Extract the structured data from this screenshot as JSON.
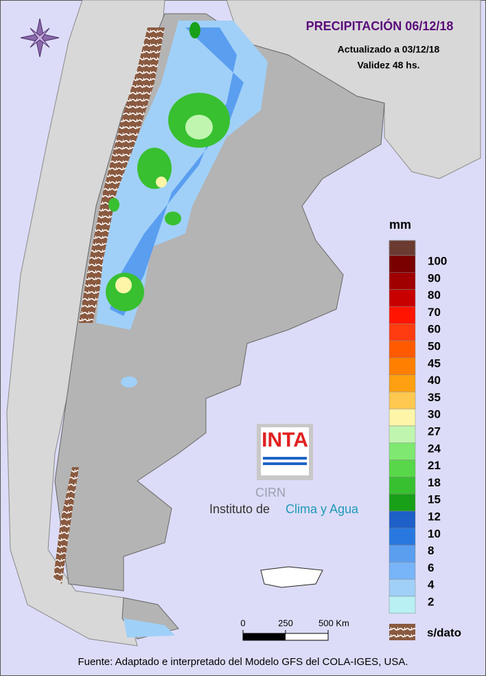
{
  "title": "PRECIPITACIÓN 06/12/18",
  "updated": "Actualizado a 03/12/18",
  "validity": "Validez 48 hs.",
  "legend": {
    "unit": "mm",
    "top_color": "#6b3a30",
    "items": [
      {
        "value": 100,
        "color": "#7a0000"
      },
      {
        "value": 90,
        "color": "#a00000"
      },
      {
        "value": 80,
        "color": "#c80000"
      },
      {
        "value": 70,
        "color": "#ff1400"
      },
      {
        "value": 60,
        "color": "#ff3c10"
      },
      {
        "value": 50,
        "color": "#ff5a00"
      },
      {
        "value": 45,
        "color": "#ff8000"
      },
      {
        "value": 40,
        "color": "#ffa010"
      },
      {
        "value": 35,
        "color": "#ffc850"
      },
      {
        "value": 30,
        "color": "#fff5a8"
      },
      {
        "value": 27,
        "color": "#c0f5b0"
      },
      {
        "value": 24,
        "color": "#7ee870"
      },
      {
        "value": 21,
        "color": "#58d848"
      },
      {
        "value": 18,
        "color": "#38c030"
      },
      {
        "value": 15,
        "color": "#18a018"
      },
      {
        "value": 12,
        "color": "#1e5fc8"
      },
      {
        "value": 10,
        "color": "#2878e0"
      },
      {
        "value": 8,
        "color": "#5a9ef0"
      },
      {
        "value": 6,
        "color": "#78b4f8"
      },
      {
        "value": 4,
        "color": "#a0d0f8"
      },
      {
        "value": 2,
        "color": "#b8f0f4"
      }
    ],
    "no_data": "s/dato",
    "no_data_color": "#8a5a40"
  },
  "scale": {
    "ticks": [
      0,
      250,
      {
        "value": 500,
        "label": "500 Km"
      }
    ],
    "range": [
      0,
      500
    ]
  },
  "logo": {
    "inta": "INTA",
    "cirn": "CIRN",
    "institute_prefix": "Instituto de",
    "institute_name": "Clima y Agua"
  },
  "source": "Fuente: Adaptado e interpretado del Modelo GFS del COLA-IGES, USA."
}
